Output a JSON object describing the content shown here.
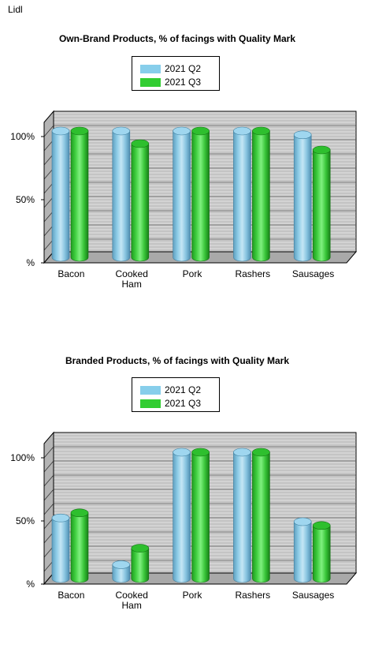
{
  "header": {
    "brand": "Lidl"
  },
  "legend": {
    "series": [
      {
        "name": "2021 Q2",
        "color": "#87ceeb"
      },
      {
        "name": "2021 Q3",
        "color": "#32cd32"
      }
    ]
  },
  "charts": [
    {
      "title": "Own-Brand Products, % of facings with Quality Mark"
    },
    {
      "title": "Branded Products, % of facings with Quality Mark"
    }
  ],
  "chart_data": [
    {
      "type": "bar",
      "title": "Own-Brand Products, % of facings with Quality Mark",
      "categories": [
        [
          "Bacon"
        ],
        [
          "Cooked",
          "Ham"
        ],
        [
          "Pork"
        ],
        [
          "Rashers"
        ],
        [
          "Sausages"
        ]
      ],
      "series": [
        {
          "name": "2021 Q2",
          "values": [
            100,
            100,
            100,
            100,
            97
          ]
        },
        {
          "name": "2021 Q3",
          "values": [
            100,
            90,
            100,
            100,
            85
          ]
        }
      ],
      "yticks": [
        "%",
        "50%",
        "100%"
      ],
      "ylim": [
        0,
        100
      ],
      "grid": true,
      "legend": "top-center"
    },
    {
      "type": "bar",
      "title": "Branded Products, % of facings with Quality Mark",
      "categories": [
        [
          "Bacon"
        ],
        [
          "Cooked",
          "Ham"
        ],
        [
          "Pork"
        ],
        [
          "Rashers"
        ],
        [
          "Sausages"
        ]
      ],
      "series": [
        {
          "name": "2021 Q2",
          "values": [
            48,
            11,
            100,
            100,
            45
          ]
        },
        {
          "name": "2021 Q3",
          "values": [
            52,
            24,
            100,
            100,
            42
          ]
        }
      ],
      "yticks": [
        "%",
        "50%",
        "100%"
      ],
      "ylim": [
        0,
        100
      ],
      "grid": true,
      "legend": "top-center"
    }
  ]
}
